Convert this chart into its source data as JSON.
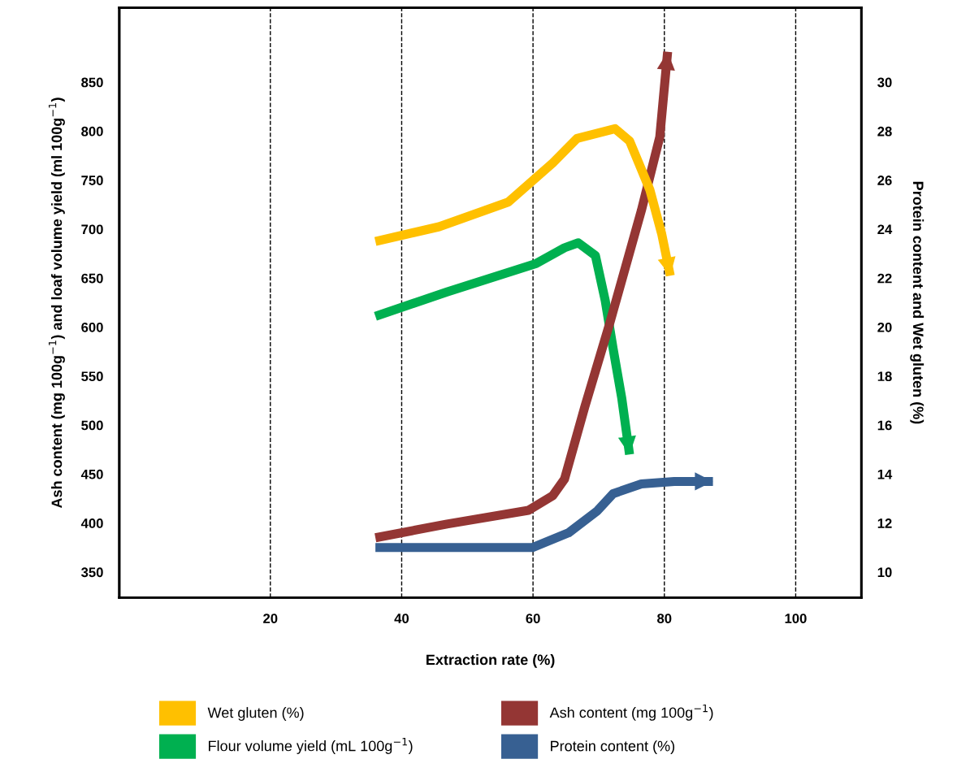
{
  "chart_data": {
    "type": "line",
    "xlabel": "Extraction rate (%)",
    "ylabel": "Ash content (mg 100g$^{−1}$) and loaf volume yield (ml 100g$^{−1}$)",
    "y2label": "Protein content and Wet gluten (%)",
    "xlim": [
      -3,
      110
    ],
    "xticks": [
      20,
      40,
      60,
      80,
      100
    ],
    "ylim": [
      324,
      926
    ],
    "yticks": [
      350,
      400,
      450,
      500,
      550,
      600,
      650,
      700,
      750,
      800,
      850
    ],
    "y2lim": [
      8.96,
      33.04
    ],
    "y2ticks": [
      10,
      12,
      14,
      16,
      18,
      20,
      22,
      24,
      26,
      28,
      30
    ],
    "grid": "x",
    "legend": "bottom",
    "marker": "none",
    "line_style": "solid",
    "series": [
      {
        "name": "Wet gluten (%)",
        "color": "#ffc000",
        "axis": "y2",
        "x": [
          36.0,
          45.7,
          56.2,
          63.0,
          66.7,
          72.5,
          74.7,
          77.8,
          79.6,
          80.9
        ],
        "values": [
          23.5,
          24.1,
          25.1,
          26.7,
          27.7,
          28.1,
          27.6,
          25.6,
          23.8,
          22.1
        ]
      },
      {
        "name": "Flour volume yield (mL 100g$^{−1}$)",
        "color": "#00b050",
        "axis": "y",
        "x": [
          36.0,
          46.9,
          60.5,
          64.8,
          66.9,
          69.5,
          71.0,
          72.2,
          73.5,
          74.7
        ],
        "values": [
          611,
          636,
          665,
          681,
          686,
          673,
          627,
          578,
          528,
          470
        ]
      },
      {
        "name": "Ash content (mg 100g$^{−1}$)",
        "color": "#943634",
        "axis": "y",
        "x": [
          36.0,
          46.9,
          59.3,
          63.0,
          64.8,
          67.9,
          71.6,
          76.5,
          79.3,
          80.5
        ],
        "values": [
          385,
          399,
          413,
          428,
          445,
          519,
          602,
          719,
          794,
          881
        ]
      },
      {
        "name": "Protein content (%)",
        "color": "#376092",
        "axis": "y2",
        "x": [
          36.0,
          59.9,
          65.4,
          69.8,
          72.2,
          76.5,
          81.5,
          87.4
        ],
        "values": [
          11.0,
          11.0,
          11.6,
          12.5,
          13.2,
          13.6,
          13.7,
          13.7
        ]
      }
    ]
  }
}
